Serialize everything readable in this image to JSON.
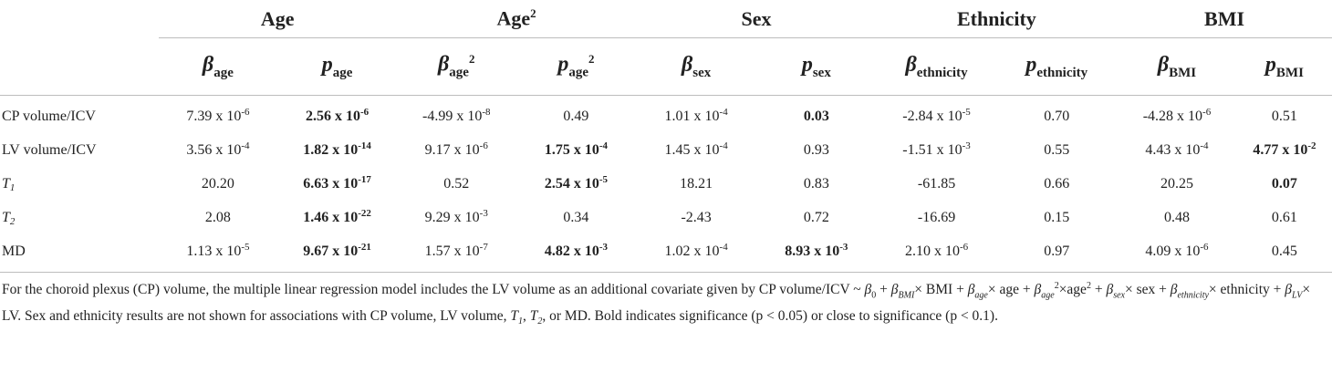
{
  "table": {
    "groups": [
      "Age",
      "Age2",
      "Sex",
      "Ethnicity",
      "BMI"
    ],
    "group_headers": {
      "age": "Age",
      "age2_base": "Age",
      "age2_sup": "2",
      "sex": "Sex",
      "ethnicity": "Ethnicity",
      "bmi": "BMI"
    },
    "subheaders": {
      "beta_symbol": "β",
      "p_symbol": "p",
      "age": "age",
      "sex": "sex",
      "ethnicity": "ethnicity",
      "bmi": "BMI",
      "sq": "2"
    },
    "rows": [
      {
        "label": "CP volume/ICV",
        "cells": [
          {
            "m": "7.39 x 10",
            "e": "-6",
            "bold": false
          },
          {
            "m": "2.56 x 10",
            "e": "-6",
            "bold": true
          },
          {
            "m": "-4.99 x 10",
            "e": "-8",
            "bold": false
          },
          {
            "m": "0.49",
            "e": "",
            "bold": false
          },
          {
            "m": "1.01 x 10",
            "e": "-4",
            "bold": false
          },
          {
            "m": "0.03",
            "e": "",
            "bold": true
          },
          {
            "m": "-2.84 x 10",
            "e": "-5",
            "bold": false
          },
          {
            "m": "0.70",
            "e": "",
            "bold": false
          },
          {
            "m": "-4.28 x 10",
            "e": "-6",
            "bold": false
          },
          {
            "m": "0.51",
            "e": "",
            "bold": false
          }
        ]
      },
      {
        "label": "LV volume/ICV",
        "cells": [
          {
            "m": "3.56 x 10",
            "e": "-4",
            "bold": false
          },
          {
            "m": "1.82 x 10",
            "e": "-14",
            "bold": true
          },
          {
            "m": "9.17 x 10",
            "e": "-6",
            "bold": false
          },
          {
            "m": "1.75 x 10",
            "e": "-4",
            "bold": true
          },
          {
            "m": "1.45 x 10",
            "e": "-4",
            "bold": false
          },
          {
            "m": "0.93",
            "e": "",
            "bold": false
          },
          {
            "m": "-1.51 x 10",
            "e": "-3",
            "bold": false
          },
          {
            "m": "0.55",
            "e": "",
            "bold": false
          },
          {
            "m": "4.43 x 10",
            "e": "-4",
            "bold": false
          },
          {
            "m": "4.77 x 10",
            "e": "-2",
            "bold": true
          }
        ]
      },
      {
        "label": "T",
        "label_sub": "1",
        "cells": [
          {
            "m": "20.20",
            "e": "",
            "bold": false
          },
          {
            "m": "6.63 x 10",
            "e": "-17",
            "bold": true
          },
          {
            "m": "0.52",
            "e": "",
            "bold": false
          },
          {
            "m": "2.54 x 10",
            "e": "-5",
            "bold": true
          },
          {
            "m": "18.21",
            "e": "",
            "bold": false
          },
          {
            "m": "0.83",
            "e": "",
            "bold": false
          },
          {
            "m": "-61.85",
            "e": "",
            "bold": false
          },
          {
            "m": "0.66",
            "e": "",
            "bold": false
          },
          {
            "m": "20.25",
            "e": "",
            "bold": false
          },
          {
            "m": "0.07",
            "e": "",
            "bold": true
          }
        ]
      },
      {
        "label": "T",
        "label_sub": "2",
        "cells": [
          {
            "m": "2.08",
            "e": "",
            "bold": false
          },
          {
            "m": "1.46 x 10",
            "e": "-22",
            "bold": true
          },
          {
            "m": "9.29 x 10",
            "e": "-3",
            "bold": false
          },
          {
            "m": "0.34",
            "e": "",
            "bold": false
          },
          {
            "m": "-2.43",
            "e": "",
            "bold": false
          },
          {
            "m": "0.72",
            "e": "",
            "bold": false
          },
          {
            "m": "-16.69",
            "e": "",
            "bold": false
          },
          {
            "m": "0.15",
            "e": "",
            "bold": false
          },
          {
            "m": "0.48",
            "e": "",
            "bold": false
          },
          {
            "m": "0.61",
            "e": "",
            "bold": false
          }
        ]
      },
      {
        "label": "MD",
        "cells": [
          {
            "m": "1.13 x 10",
            "e": "-5",
            "bold": false
          },
          {
            "m": "9.67 x 10",
            "e": "-21",
            "bold": true
          },
          {
            "m": "1.57 x 10",
            "e": "-7",
            "bold": false
          },
          {
            "m": "4.82 x 10",
            "e": "-3",
            "bold": true
          },
          {
            "m": "1.02 x 10",
            "e": "-4",
            "bold": false
          },
          {
            "m": "8.93 x 10",
            "e": "-3",
            "bold": true
          },
          {
            "m": "2.10 x 10",
            "e": "-6",
            "bold": false
          },
          {
            "m": "0.97",
            "e": "",
            "bold": false
          },
          {
            "m": "4.09 x 10",
            "e": "-6",
            "bold": false
          },
          {
            "m": "0.45",
            "e": "",
            "bold": false
          }
        ]
      }
    ]
  },
  "footnote": {
    "p1": "For the choroid plexus (CP) volume, the multiple linear regression model includes the LV volume as an additional covariate given by CP volume/ICV ~ ",
    "beta": "β",
    "s0": "0",
    "plus": " + ",
    "sBMI": "BMI",
    "t_bmi": "× BMI + ",
    "sage": "age",
    "t_age": "× age + ",
    "t_age2": "×age",
    "sq": "2",
    "ssex": "sex",
    "t_sex": "× sex + ",
    "seth": "ethnicity",
    "t_eth": "× ethnicity + ",
    "sLV": "LV",
    "t_lv": "× LV. Sex and ethnicity results are not shown for associations with CP volume, LV volume, ",
    "T": "T",
    "one": "1",
    "two": "2",
    "comma": ", ",
    "t_md": ", or MD. Bold indicates significance (p < 0.05) or close to significance (p < 0.1)."
  }
}
